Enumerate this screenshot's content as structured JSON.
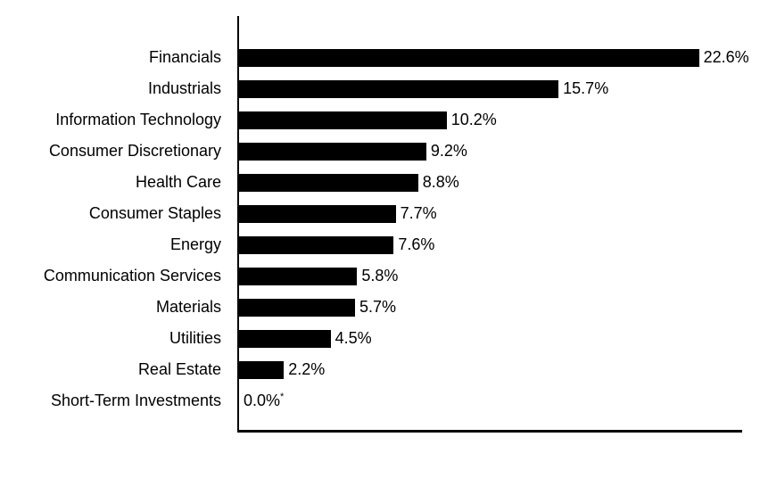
{
  "chart_data": {
    "type": "bar",
    "orientation": "horizontal",
    "title": "",
    "xlabel": "",
    "ylabel": "",
    "categories": [
      "Financials",
      "Industrials",
      "Information Technology",
      "Consumer Discretionary",
      "Health Care",
      "Consumer Staples",
      "Energy",
      "Communication Services",
      "Materials",
      "Utilities",
      "Real Estate",
      "Short-Term Investments"
    ],
    "values": [
      22.6,
      15.7,
      10.2,
      9.2,
      8.8,
      7.7,
      7.6,
      5.8,
      5.7,
      4.5,
      2.2,
      0.0
    ],
    "value_labels": [
      "22.6%",
      "15.7%",
      "10.2%",
      "9.2%",
      "8.8%",
      "7.7%",
      "7.6%",
      "5.8%",
      "5.7%",
      "4.5%",
      "2.2%",
      "0.0%"
    ],
    "footnote_markers": [
      "",
      "",
      "",
      "",
      "",
      "",
      "",
      "",
      "",
      "",
      "",
      "*"
    ],
    "xlim": [
      0,
      25.6
    ],
    "grid": false,
    "legend": false,
    "bar_color": "#000000",
    "text_color": "#000000",
    "background_color": "#ffffff"
  }
}
